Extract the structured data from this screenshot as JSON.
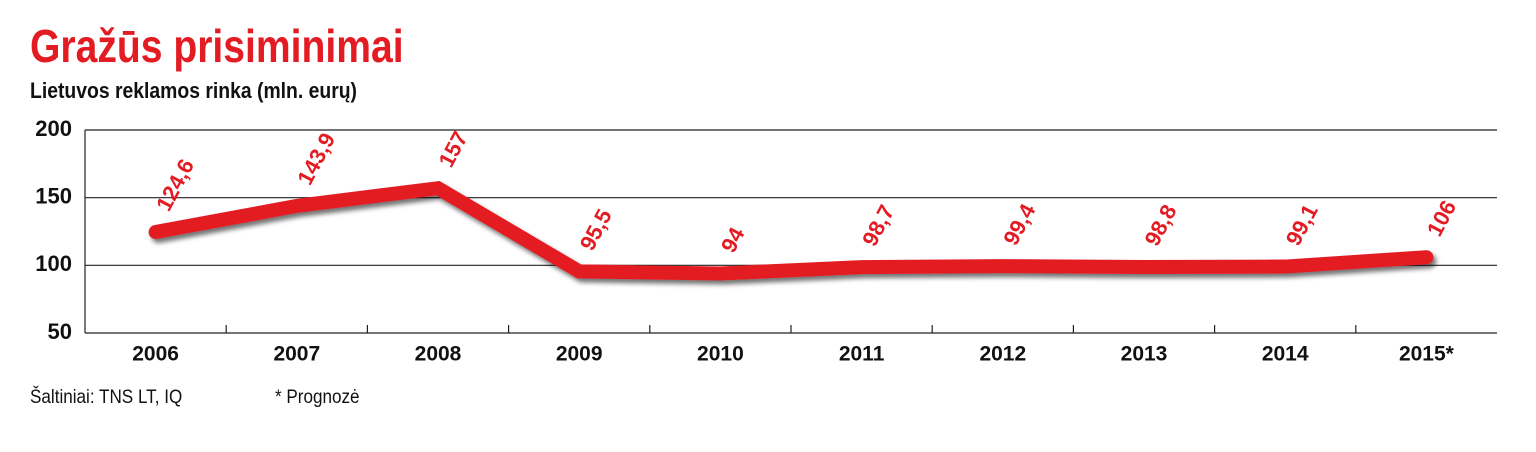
{
  "chart_data": {
    "type": "line",
    "title": "Gražūs prisiminimai",
    "subtitle": "Lietuvos reklamos rinka (mln. eurų)",
    "categories": [
      "2006",
      "2007",
      "2008",
      "2009",
      "2010",
      "2011",
      "2012",
      "2013",
      "2014",
      "2015*"
    ],
    "series": [
      {
        "name": "Lietuvos reklamos rinka",
        "color": "#e31b23",
        "values": [
          124.6,
          143.9,
          157,
          95.5,
          94,
          98.7,
          99.4,
          98.8,
          99.1,
          106
        ],
        "value_labels": [
          "124,6",
          "143,9",
          "157",
          "95,5",
          "94",
          "98,7",
          "99,4",
          "98,8",
          "99,1",
          "106"
        ]
      }
    ],
    "ylim": [
      50,
      200
    ],
    "yticks": [
      50,
      100,
      150,
      200
    ],
    "grid": true,
    "sources": "Šaltiniai: TNS LT, IQ",
    "note": "* Prognozė"
  }
}
